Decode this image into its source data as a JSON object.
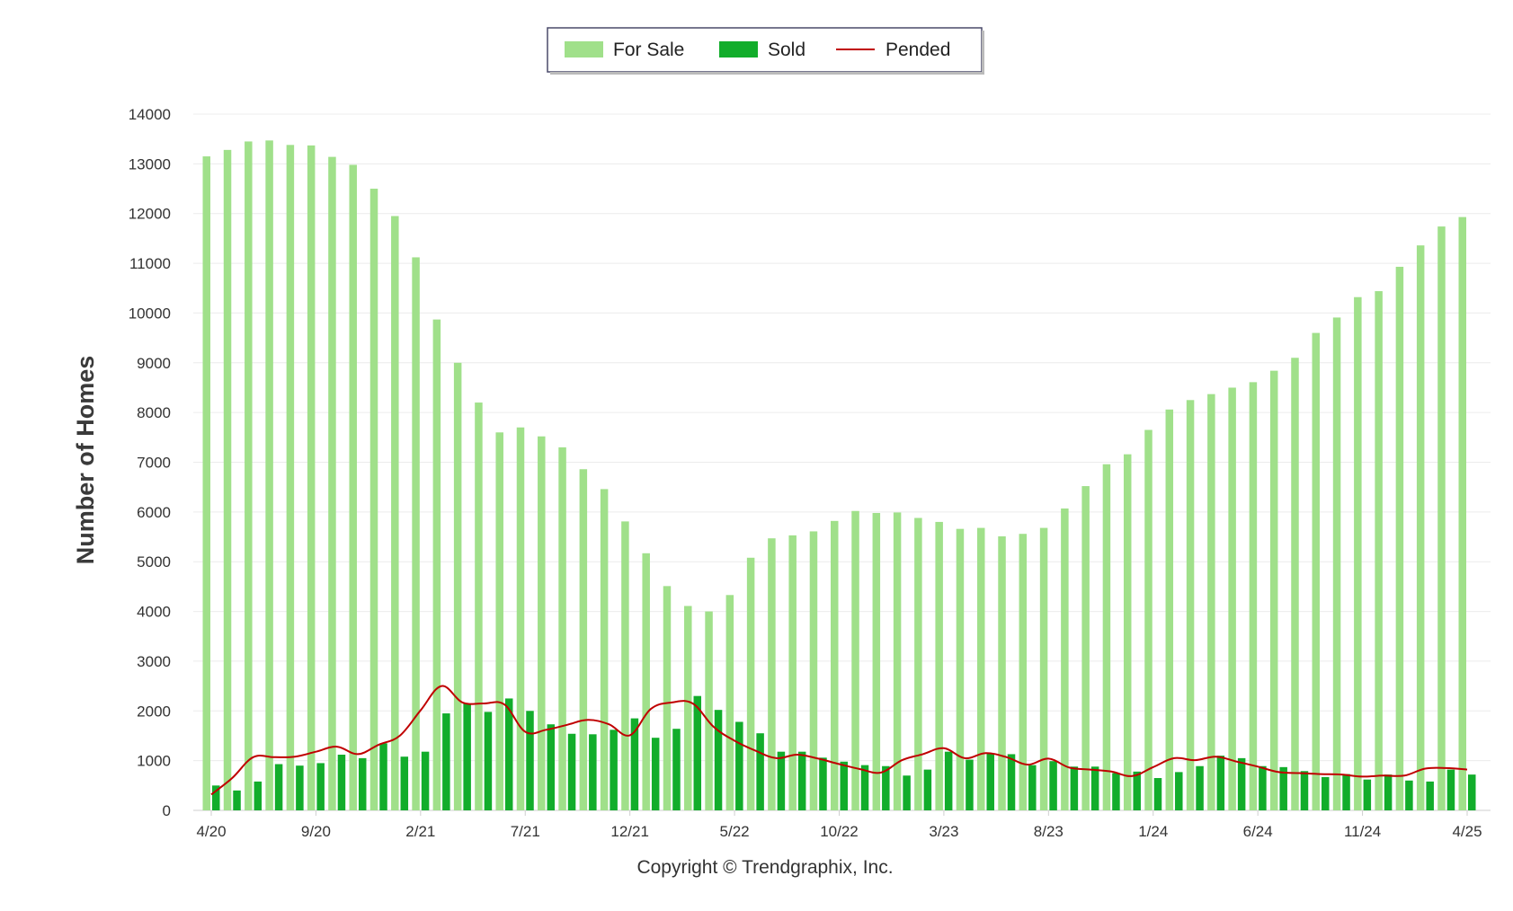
{
  "chart_data": {
    "type": "bar",
    "ylabel": "Number of Homes",
    "xlabel": "",
    "ylim": [
      0,
      14000
    ],
    "yticks": [
      0,
      1000,
      2000,
      3000,
      4000,
      5000,
      6000,
      7000,
      8000,
      9000,
      10000,
      11000,
      12000,
      13000,
      14000
    ],
    "grid": true,
    "legend_position": "top-center",
    "copyright": "Copyright © Trendgraphix, Inc.",
    "x_tick_labels": [
      {
        "index": 0,
        "label": "4/20"
      },
      {
        "index": 5,
        "label": "9/20"
      },
      {
        "index": 10,
        "label": "2/21"
      },
      {
        "index": 15,
        "label": "7/21"
      },
      {
        "index": 20,
        "label": "12/21"
      },
      {
        "index": 25,
        "label": "5/22"
      },
      {
        "index": 30,
        "label": "10/22"
      },
      {
        "index": 35,
        "label": "3/23"
      },
      {
        "index": 40,
        "label": "8/23"
      },
      {
        "index": 45,
        "label": "1/24"
      },
      {
        "index": 50,
        "label": "6/24"
      },
      {
        "index": 55,
        "label": "11/24"
      },
      {
        "index": 60,
        "label": "4/25"
      }
    ],
    "categories": [
      "4/20",
      "5/20",
      "6/20",
      "7/20",
      "8/20",
      "9/20",
      "10/20",
      "11/20",
      "12/20",
      "1/21",
      "2/21",
      "3/21",
      "4/21",
      "5/21",
      "6/21",
      "7/21",
      "8/21",
      "9/21",
      "10/21",
      "11/21",
      "12/21",
      "1/22",
      "2/22",
      "3/22",
      "4/22",
      "5/22",
      "6/22",
      "7/22",
      "8/22",
      "9/22",
      "10/22",
      "11/22",
      "12/22",
      "1/23",
      "2/23",
      "3/23",
      "4/23",
      "5/23",
      "6/23",
      "7/23",
      "8/23",
      "9/23",
      "10/23",
      "11/23",
      "12/23",
      "1/24",
      "2/24",
      "3/24",
      "4/24",
      "5/24",
      "6/24",
      "7/24",
      "8/24",
      "9/24",
      "10/24",
      "11/24",
      "12/24",
      "1/25",
      "2/25",
      "3/25",
      "4/25"
    ],
    "series": [
      {
        "name": "For Sale",
        "kind": "bar",
        "color": "#a0e08a",
        "values": [
          13150,
          13280,
          13450,
          13470,
          13380,
          13370,
          13140,
          12980,
          12500,
          11950,
          11120,
          9870,
          9000,
          8200,
          7600,
          7700,
          7520,
          7300,
          6860,
          6460,
          5810,
          5170,
          4510,
          4110,
          4000,
          4330,
          5080,
          5470,
          5530,
          5610,
          5820,
          6020,
          5980,
          5990,
          5880,
          5800,
          5660,
          5680,
          5510,
          5560,
          5680,
          6070,
          6520,
          6960,
          7160,
          7650,
          8060,
          8250,
          8370,
          8500,
          8610,
          8840,
          9100,
          9600,
          9910,
          10320,
          10440,
          10930,
          11360,
          11740,
          11930
        ]
      },
      {
        "name": "Sold",
        "kind": "bar",
        "color": "#12ad2b",
        "values": [
          500,
          400,
          580,
          930,
          900,
          950,
          1120,
          1050,
          1350,
          1080,
          1180,
          1950,
          2150,
          1980,
          2250,
          2000,
          1730,
          1540,
          1530,
          1620,
          1850,
          1460,
          1640,
          2300,
          2020,
          1780,
          1550,
          1180,
          1180,
          1060,
          980,
          910,
          890,
          700,
          820,
          1180,
          1020,
          1140,
          1130,
          910,
          990,
          880,
          880,
          750,
          780,
          650,
          770,
          890,
          1100,
          1050,
          890,
          870,
          790,
          670,
          730,
          620,
          720,
          600,
          580,
          820,
          720
        ]
      },
      {
        "name": "Pended",
        "kind": "line",
        "color": "#c00000",
        "values": [
          320,
          650,
          1070,
          1070,
          1080,
          1180,
          1280,
          1130,
          1320,
          1500,
          2010,
          2500,
          2170,
          2150,
          2130,
          1580,
          1620,
          1720,
          1820,
          1730,
          1510,
          2040,
          2170,
          2150,
          1680,
          1400,
          1200,
          1050,
          1120,
          1040,
          930,
          830,
          760,
          1010,
          1130,
          1250,
          1050,
          1150,
          1070,
          920,
          1040,
          860,
          820,
          780,
          690,
          870,
          1050,
          1010,
          1080,
          980,
          880,
          770,
          750,
          730,
          720,
          680,
          700,
          700,
          840,
          850,
          820
        ]
      }
    ]
  }
}
